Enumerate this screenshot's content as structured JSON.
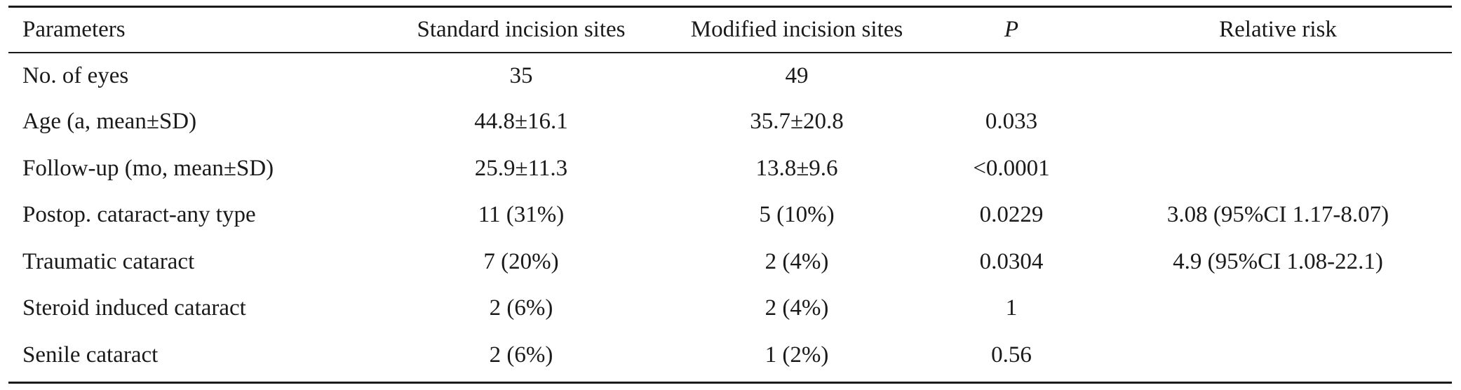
{
  "table": {
    "headers": [
      "Parameters",
      "Standard incision sites",
      "Modified incision sites",
      "P",
      "Relative risk"
    ],
    "rows": [
      [
        "No. of eyes",
        "35",
        "49",
        "",
        ""
      ],
      [
        "Age (a, mean±SD)",
        "44.8±16.1",
        "35.7±20.8",
        "0.033",
        ""
      ],
      [
        "Follow-up (mo, mean±SD)",
        "25.9±11.3",
        "13.8±9.6",
        "<0.0001",
        ""
      ],
      [
        "Postop. cataract-any type",
        "11 (31%)",
        "5 (10%)",
        "0.0229",
        "3.08 (95%CI 1.17-8.07)"
      ],
      [
        "Traumatic cataract",
        "7 (20%)",
        "2 (4%)",
        "0.0304",
        "4.9 (95%CI 1.08-22.1)"
      ],
      [
        "Steroid induced cataract",
        "2 (6%)",
        "2 (4%)",
        "1",
        ""
      ],
      [
        "Senile cataract",
        "2 (6%)",
        "1 (2%)",
        "0.56",
        ""
      ]
    ]
  }
}
